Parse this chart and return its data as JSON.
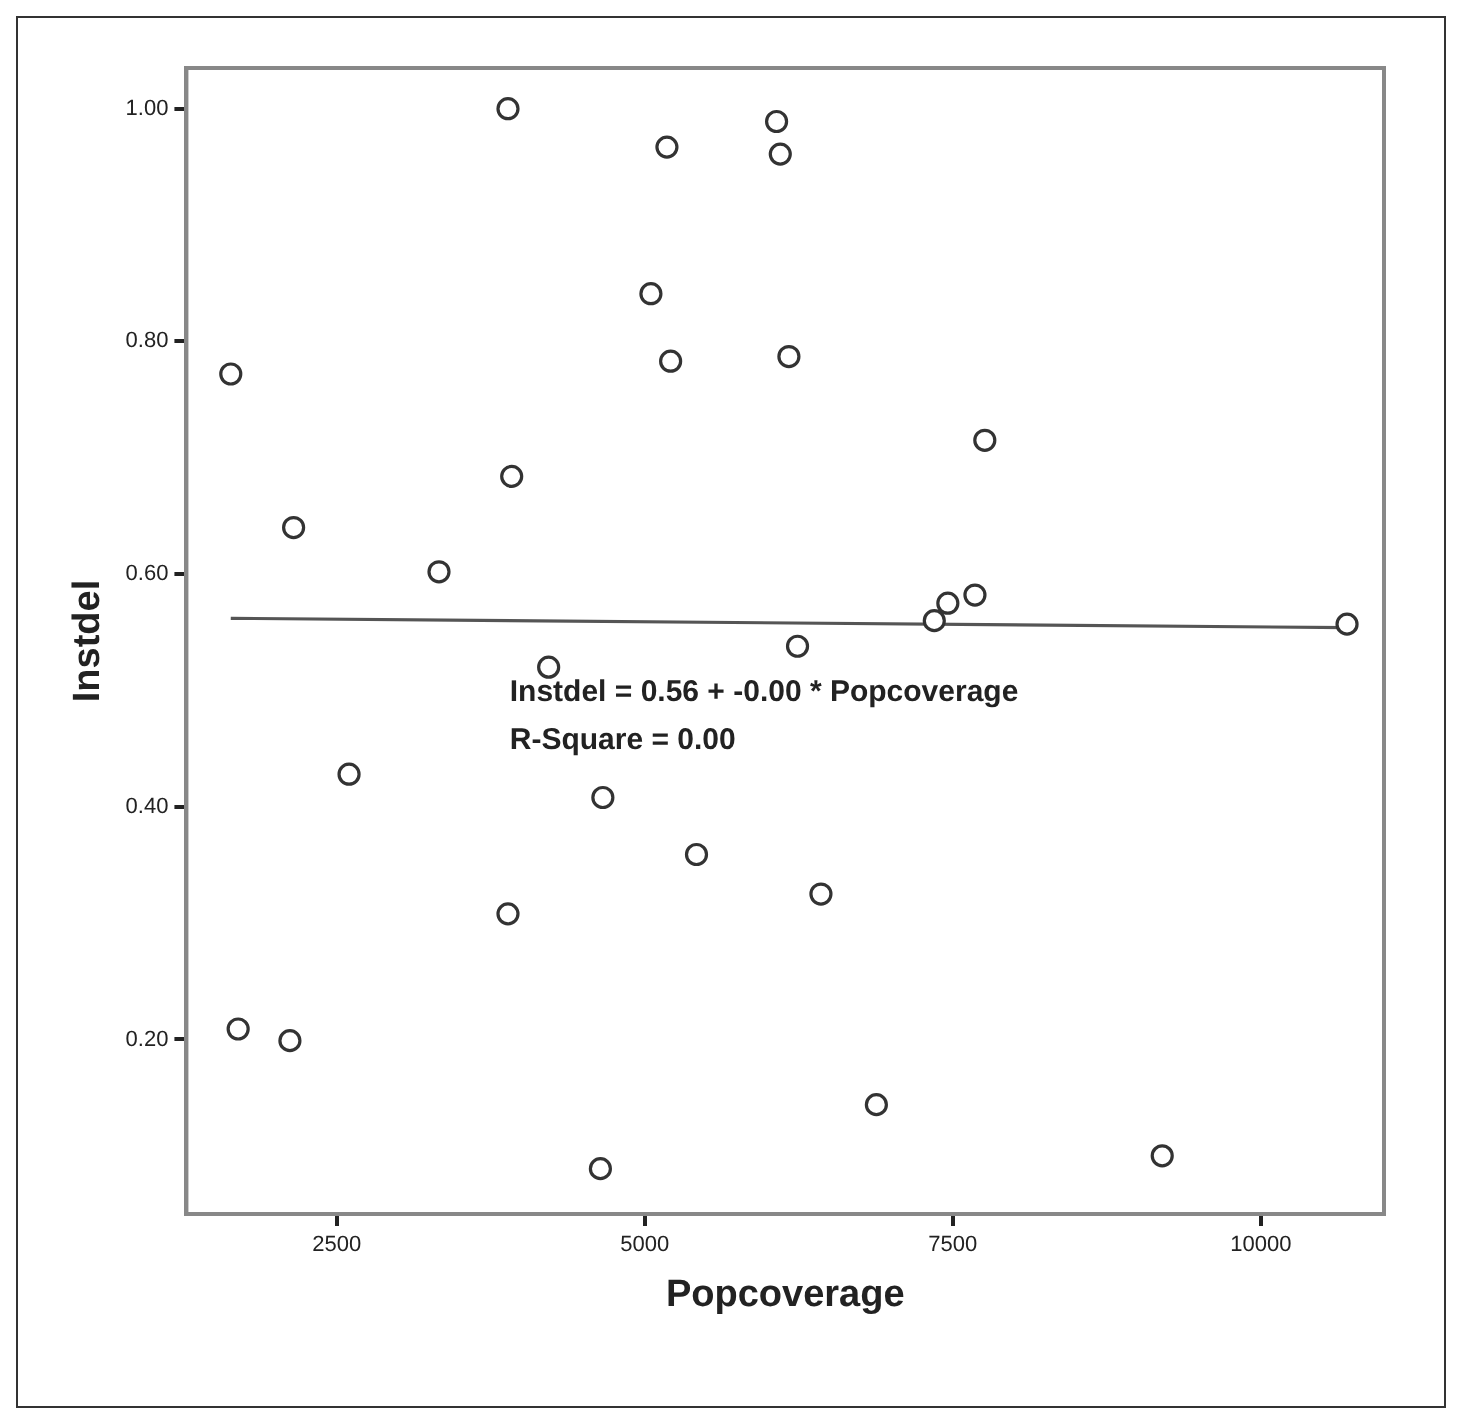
{
  "chart_data": {
    "type": "scatter",
    "xlabel": "Popcoverage",
    "ylabel": "Instdel",
    "xlim": [
      1280,
      11000
    ],
    "ylim": [
      0.05,
      1.035
    ],
    "xticks": [
      2500,
      5000,
      7500,
      10000
    ],
    "yticks": [
      {
        "value": 0.2,
        "label": "0.20"
      },
      {
        "value": 0.4,
        "label": "0.40"
      },
      {
        "value": 0.6,
        "label": "0.60"
      },
      {
        "value": 0.8,
        "label": "0.80"
      },
      {
        "value": 1.0,
        "label": "1.00"
      }
    ],
    "grid": false,
    "legend": false,
    "marker": "circle",
    "series": [
      {
        "type": "scatter",
        "color": "#333333",
        "x": [
          3890,
          5180,
          5050,
          5210,
          1640,
          3920,
          2150,
          3330,
          6070,
          6100,
          6170,
          7760,
          7680,
          7460,
          7350,
          10700,
          6240,
          6430,
          6880,
          9200,
          4220,
          2600,
          4660,
          5420,
          3890,
          1700,
          2120,
          4640
        ],
        "values": [
          1.0,
          0.967,
          0.841,
          0.783,
          0.772,
          0.684,
          0.64,
          0.602,
          0.989,
          0.961,
          0.787,
          0.715,
          0.582,
          0.575,
          0.56,
          0.557,
          0.538,
          0.325,
          0.144,
          0.1,
          0.52,
          0.428,
          0.408,
          0.359,
          0.308,
          0.209,
          0.199,
          0.089
        ]
      },
      {
        "type": "line",
        "color": "#555555",
        "x": [
          1640,
          10700
        ],
        "values": [
          0.562,
          0.554
        ],
        "marker": "none",
        "line_style": "solid"
      }
    ],
    "annotations": [
      "Instdel = 0.56 + -0.00 * Popcoverage",
      "R-Square = 0.00"
    ]
  }
}
